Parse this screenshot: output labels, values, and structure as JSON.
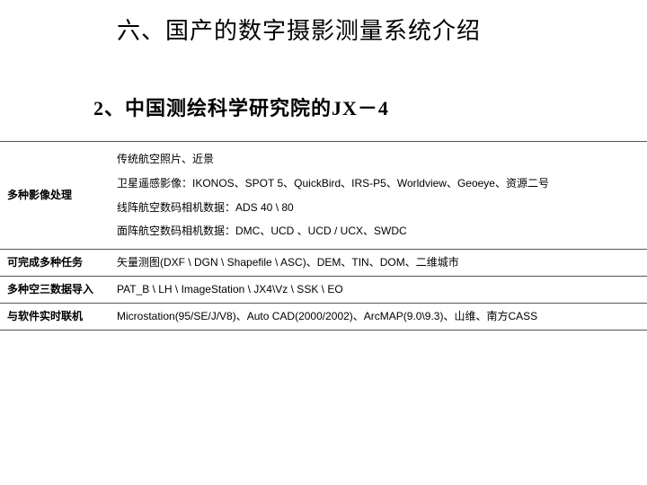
{
  "title": "六、国产的数字摄影测量系统介绍",
  "subtitle": "2、中国测绘科学研究院的JX－4",
  "table": {
    "rows": [
      {
        "label": "多种影像处理",
        "lines": [
          "传统航空照片、近景",
          "卫星遥感影像：IKONOS、SPOT 5、QuickBird、IRS-P5、Worldview、Geoeye、资源二号",
          "线阵航空数码相机数据：ADS 40 \\ 80",
          "面阵航空数码相机数据：DMC、UCD 、UCD / UCX、SWDC"
        ]
      },
      {
        "label": "可完成多种任务",
        "lines": [
          "矢量测图(DXF \\ DGN \\ Shapefile \\ ASC)、DEM、TIN、DOM、二维城市"
        ]
      },
      {
        "label": "多种空三数据导入",
        "lines": [
          "PAT_B \\ LH \\ ImageStation \\ JX4\\Vz \\ SSK \\ EO"
        ]
      },
      {
        "label": "与软件实时联机",
        "lines": [
          "Microstation(95/SE/J/V8)、Auto CAD(2000/2002)、ArcMAP(9.0\\9.3)、山维、南方CASS"
        ]
      }
    ]
  },
  "style": {
    "title_fontsize": 26,
    "subtitle_fontsize": 22,
    "table_fontsize": 12,
    "text_color": "#000000",
    "background_color": "#ffffff",
    "border_color": "#555555",
    "label_col_width": 122
  }
}
